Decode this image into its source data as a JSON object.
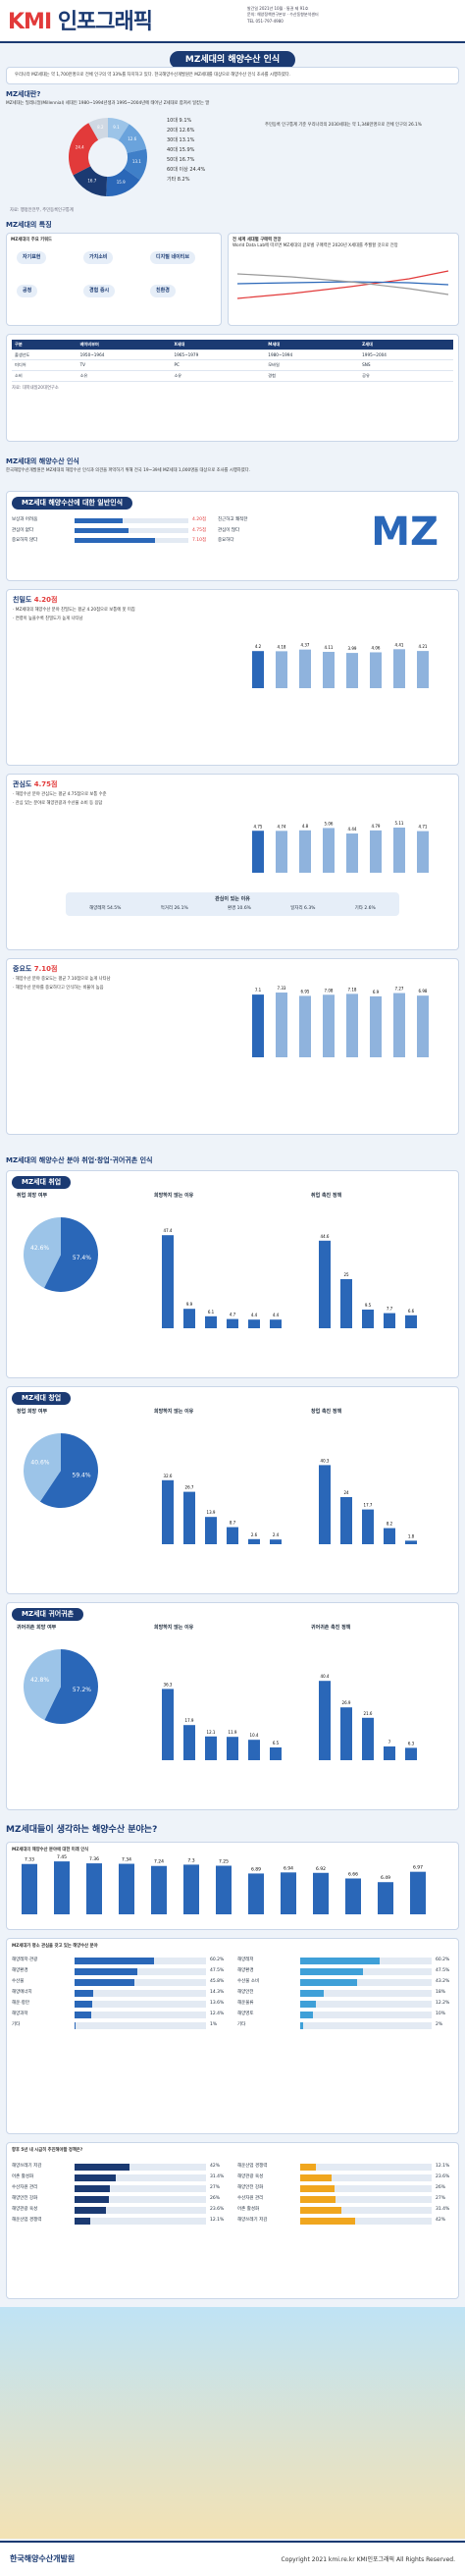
{
  "header": {
    "logo": "KMI",
    "logo_sub": "인포그래픽",
    "meta_line1": "발간일 2021년 10월 · 통권 제 91호",
    "meta_line2": "문의: 해양정책연구본부 · 수산동향분석센터",
    "meta_line3": "TEL 051-797-4980"
  },
  "title": "MZ세대의 해양수산 인식",
  "intro": "우리나라 MZ세대는 약 1,700만명으로 전체 인구의 약 33%를 차지하고 있다. 한국해양수산개발원은 MZ세대를 대상으로 해양수산 인식 조사를 시행하였다.",
  "who": {
    "heading": "MZ세대란?",
    "text": "MZ세대는 밀레니얼(Millennial) 세대인 1980~1994년생과 1995~2004년에 태어난 Z세대로 합쳐서 일컫는 말",
    "note": "주민등록 인구통계 기준 우리나라의 2030세대는 약 1,348만명으로 전체 인구의 26.1%",
    "source": "자료: 행정안전부, 주민등록인구통계",
    "donut": [
      {
        "label": "10대",
        "value": 9.1
      },
      {
        "label": "20대",
        "value": 12.6
      },
      {
        "label": "30대",
        "value": 13.1
      },
      {
        "label": "40대",
        "value": 15.9
      },
      {
        "label": "50대",
        "value": 16.7
      },
      {
        "label": "60대 이상",
        "value": 24.4
      },
      {
        "label": "기타",
        "value": 8.2
      }
    ]
  },
  "traits": {
    "heading": "MZ세대의 특징",
    "keywords_title": "MZ세대의 주요 키워드",
    "keywords": [
      "자기표현",
      "가치소비",
      "디지털 네이티브",
      "공정",
      "경험 중시",
      "친환경"
    ],
    "trend_title": "전 세계 세대별 구매력 전망",
    "trend_note": "World Data Lab에 따르면 MZ세대의 글로벌 구매력은 2020년 X세대를 추월할 것으로 전망"
  },
  "table": {
    "rows": [
      [
        "구분",
        "베이비부머",
        "X세대",
        "M세대",
        "Z세대"
      ],
      [
        "출생년도",
        "1950~1964",
        "1965~1979",
        "1980~1994",
        "1995~2004"
      ],
      [
        "미디어",
        "TV",
        "PC",
        "모바일",
        "SNS"
      ],
      [
        "소비",
        "소유",
        "소유",
        "경험",
        "공유"
      ]
    ],
    "source": "자료: 대학내일20대연구소"
  },
  "aware": {
    "heading": "MZ세대의 해양수산 인식",
    "text": "한국해양수산개발원은 MZ세대의 해양수산 인식과 의견을 파악하기 위해 전국 19~39세 MZ세대 1,000명을 대상으로 조사를 시행하였다.",
    "image_title": "MZ세대 해양수산에 대한 일반인식",
    "image_bars": [
      {
        "left": "보상과 어려움",
        "right": "친근하고 쾌적한",
        "value": 4.2
      },
      {
        "left": "관심이 없다",
        "right": "관심이 많다",
        "value": 4.75
      },
      {
        "left": "중요하지 않다",
        "right": "중요하다",
        "value": 7.1
      }
    ],
    "cards": [
      {
        "title": "친밀도",
        "score": "4.20점",
        "bullets": [
          "MZ세대의 해양수산 분야 친밀도는 평균 4.20점으로 보통에 못 미침",
          "연령이 높을수록 친밀도가 높게 나타남"
        ],
        "chart": [
          4.2,
          4.18,
          4.37,
          4.11,
          3.99,
          4.06,
          4.41,
          4.21
        ]
      },
      {
        "title": "관심도",
        "score": "4.75점",
        "bullets": [
          "해양수산 분야 관심도는 평균 4.75점으로 보통 수준",
          "관심 있는 분야로 해양관광과 수산물 소비 등 응답"
        ],
        "chart": [
          4.75,
          4.74,
          4.8,
          5.06,
          4.44,
          4.79,
          5.11,
          4.71
        ]
      },
      {
        "title": "중요도",
        "score": "7.10점",
        "bullets": [
          "해양수산 분야 중요도는 평균 7.10점으로 높게 나타남",
          "해양수산 분야를 중요하다고 인식하는 비율이 높음"
        ],
        "chart": [
          7.1,
          7.33,
          6.95,
          7.08,
          7.18,
          6.9,
          7.27,
          6.98
        ]
      }
    ],
    "interest_title": "관심이 있는 이유",
    "interest": [
      {
        "label": "해양레저",
        "value": 54.5
      },
      {
        "label": "먹거리",
        "value": 26.1
      },
      {
        "label": "환경",
        "value": 10.6
      },
      {
        "label": "일자리",
        "value": 6.3
      },
      {
        "label": "기타",
        "value": 2.6
      }
    ]
  },
  "jobs": {
    "heading": "MZ세대의 해양수산 분야 취업·창업·귀어귀촌 인식",
    "blocks": [
      {
        "name": "MZ세대 취업",
        "q1": "취업 희망 여부",
        "pie": [
          57.4,
          42.6
        ],
        "q2": "희망하지 않는 이유",
        "bars": [
          47.4,
          9.9,
          6.1,
          4.7,
          4.4,
          4.4
        ],
        "q3": "취업 촉진 정책",
        "bars2": [
          44.6,
          25.0,
          9.5,
          7.7,
          6.6
        ]
      },
      {
        "name": "MZ세대 창업",
        "q1": "창업 희망 여부",
        "pie": [
          59.4,
          40.6
        ],
        "q2": "희망하지 않는 이유",
        "bars": [
          32.6,
          26.7,
          13.9,
          8.7,
          2.6,
          2.4
        ],
        "q3": "창업 촉진 정책",
        "bars2": [
          40.3,
          24.0,
          17.7,
          8.2,
          1.8
        ]
      },
      {
        "name": "MZ세대 귀어귀촌",
        "q1": "귀어귀촌 희망 여부",
        "pie": [
          57.2,
          42.8
        ],
        "q2": "희망하지 않는 이유",
        "bars": [
          36.3,
          17.9,
          12.1,
          11.9,
          10.4,
          6.5
        ],
        "q3": "귀어귀촌 촉진 정책",
        "bars2": [
          40.4,
          26.9,
          21.6,
          7.0,
          6.3
        ]
      }
    ],
    "legend": [
      "긍정",
      "부정"
    ]
  },
  "future": {
    "heading": "MZ세대들이 생각하는 해양수산 분야는?",
    "q1": "MZ세대의 해양수산 분야에 대한 미래 인식",
    "vals": [
      7.33,
      7.45,
      7.36,
      7.34,
      7.24,
      7.3,
      7.25,
      6.89,
      6.94,
      6.92,
      6.66,
      6.49,
      6.97
    ],
    "q2": "MZ세대가 평소 관심을 갖고 있는 해양수산 분야",
    "left": [
      {
        "label": "해양레저·관광",
        "value": 60.2
      },
      {
        "label": "해양환경",
        "value": 47.5
      },
      {
        "label": "수산물",
        "value": 45.8
      },
      {
        "label": "해양에너지",
        "value": 14.3
      },
      {
        "label": "해운·항만",
        "value": 13.6
      },
      {
        "label": "해양과학",
        "value": 12.4
      },
      {
        "label": "기타",
        "value": 1.0
      }
    ],
    "right": [
      {
        "label": "해양레저",
        "value": 60.2
      },
      {
        "label": "해양환경",
        "value": 47.5
      },
      {
        "label": "수산물 소비",
        "value": 43.2
      },
      {
        "label": "해양안전",
        "value": 18.0
      },
      {
        "label": "해운물류",
        "value": 12.2
      },
      {
        "label": "해양영토",
        "value": 10.0
      },
      {
        "label": "기타",
        "value": 2.0
      }
    ],
    "q3": "향후 5년 내 시급히 추진해야할 정책은?",
    "policy": [
      {
        "label": "해양쓰레기 저감",
        "value": 42.0
      },
      {
        "label": "어촌 활성화",
        "value": 31.4
      },
      {
        "label": "수산자원 관리",
        "value": 27.0
      },
      {
        "label": "해양안전 강화",
        "value": 26.0
      },
      {
        "label": "해양관광 육성",
        "value": 23.6
      },
      {
        "label": "해운산업 경쟁력",
        "value": 12.1
      }
    ]
  },
  "footer": {
    "org": "한국해양수산개발원",
    "copyright": "Copyright 2021 kmi.re.kr KMI인포그래픽 All Rights Reserved."
  }
}
